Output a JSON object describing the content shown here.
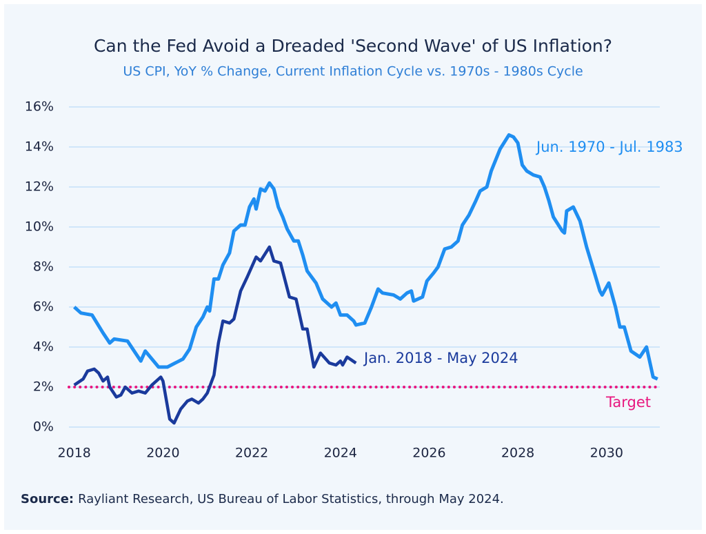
{
  "chart_data": {
    "type": "line",
    "title": "Can the Fed Avoid a Dreaded 'Second Wave' of US Inflation?",
    "subtitle": "US CPI, YoY % Change, Current Inflation Cycle vs. 1970s - 1980s Cycle",
    "source_label": "Source:",
    "source_text": "Rayliant Research, US Bureau of Labor Statistics, through May 2024.",
    "xlim": [
      2017.88,
      2031.2
    ],
    "xticks": [
      2018,
      2020,
      2022,
      2024,
      2026,
      2028,
      2030
    ],
    "ylim": [
      0,
      16
    ],
    "yticks": [
      {
        "value": 0,
        "label": "0%"
      },
      {
        "value": 2,
        "label": "2%"
      },
      {
        "value": 4,
        "label": "4%"
      },
      {
        "value": 6,
        "label": "6%"
      },
      {
        "value": 8,
        "label": "8%"
      },
      {
        "value": 10,
        "label": "10%"
      },
      {
        "value": 12,
        "label": "12%"
      },
      {
        "value": 14,
        "label": "14%"
      },
      {
        "value": 16,
        "label": "16%"
      }
    ],
    "grid": true,
    "reference_line": {
      "value": 2,
      "label": "Target",
      "color": "#e8177f"
    },
    "series": [
      {
        "name": "Jun. 1970 - Jul. 1983",
        "color": "#1f8ef1",
        "x": [
          2018.0,
          2018.15,
          2018.4,
          2018.65,
          2018.8,
          2018.9,
          2019.2,
          2019.5,
          2019.6,
          2019.9,
          2020.1,
          2020.45,
          2020.6,
          2020.75,
          2020.9,
          2021.0,
          2021.05,
          2021.15,
          2021.25,
          2021.35,
          2021.5,
          2021.6,
          2021.75,
          2021.85,
          2021.95,
          2022.05,
          2022.1,
          2022.2,
          2022.3,
          2022.4,
          2022.5,
          2022.6,
          2022.7,
          2022.8,
          2022.95,
          2023.05,
          2023.15,
          2023.25,
          2023.45,
          2023.6,
          2023.8,
          2023.9,
          2024.0,
          2024.15,
          2024.3,
          2024.35,
          2024.55,
          2024.7,
          2024.85,
          2024.95,
          2025.2,
          2025.35,
          2025.5,
          2025.6,
          2025.65,
          2025.85,
          2025.95,
          2026.1,
          2026.2,
          2026.35,
          2026.5,
          2026.65,
          2026.75,
          2026.9,
          2027.05,
          2027.15,
          2027.3,
          2027.4,
          2027.6,
          2027.8,
          2027.9,
          2028.0,
          2028.1,
          2028.2,
          2028.35,
          2028.5,
          2028.6,
          2028.7,
          2028.8,
          2029.0,
          2029.05,
          2029.1,
          2029.25,
          2029.4,
          2029.55,
          2029.7,
          2029.85,
          2029.9,
          2030.05,
          2030.2,
          2030.3,
          2030.4,
          2030.55,
          2030.75,
          2030.9,
          2030.95,
          2031.05,
          2031.15
        ],
        "values": [
          6.0,
          5.7,
          5.6,
          4.7,
          4.2,
          4.4,
          4.3,
          3.3,
          3.8,
          3.0,
          3.0,
          3.4,
          3.9,
          5.0,
          5.5,
          6.0,
          5.8,
          7.4,
          7.4,
          8.1,
          8.7,
          9.8,
          10.1,
          10.1,
          11.0,
          11.4,
          10.9,
          11.9,
          11.8,
          12.2,
          11.9,
          11.0,
          10.5,
          9.9,
          9.3,
          9.3,
          8.6,
          7.8,
          7.2,
          6.4,
          6.0,
          6.2,
          5.6,
          5.6,
          5.3,
          5.1,
          5.2,
          6.0,
          6.9,
          6.7,
          6.6,
          6.4,
          6.7,
          6.8,
          6.3,
          6.5,
          7.3,
          7.7,
          8.0,
          8.9,
          9.0,
          9.3,
          10.1,
          10.6,
          11.3,
          11.8,
          12.0,
          12.8,
          13.9,
          14.6,
          14.5,
          14.2,
          13.1,
          12.8,
          12.6,
          12.5,
          12.0,
          11.3,
          10.5,
          9.8,
          9.7,
          10.8,
          11.0,
          10.3,
          9.0,
          7.9,
          6.8,
          6.6,
          7.2,
          6.0,
          5.0,
          5.0,
          3.8,
          3.5,
          4.0,
          3.5,
          2.5,
          2.4
        ]
      },
      {
        "name": "Jan. 2018 - May 2024",
        "color": "#1a3a9c",
        "x": [
          2018.0,
          2018.2,
          2018.3,
          2018.45,
          2018.55,
          2018.65,
          2018.75,
          2018.8,
          2018.95,
          2019.05,
          2019.15,
          2019.3,
          2019.45,
          2019.6,
          2019.75,
          2019.95,
          2020.0,
          2020.15,
          2020.25,
          2020.4,
          2020.55,
          2020.65,
          2020.8,
          2020.9,
          2021.0,
          2021.15,
          2021.25,
          2021.35,
          2021.5,
          2021.6,
          2021.75,
          2021.9,
          2022.1,
          2022.2,
          2022.4,
          2022.5,
          2022.65,
          2022.85,
          2023.0,
          2023.15,
          2023.25,
          2023.4,
          2023.55,
          2023.75,
          2023.9,
          2024.0,
          2024.05,
          2024.15,
          2024.35
        ],
        "values": [
          2.1,
          2.4,
          2.8,
          2.9,
          2.7,
          2.3,
          2.5,
          2.0,
          1.5,
          1.6,
          2.0,
          1.7,
          1.8,
          1.7,
          2.1,
          2.5,
          2.3,
          0.4,
          0.2,
          0.9,
          1.3,
          1.4,
          1.2,
          1.4,
          1.7,
          2.6,
          4.2,
          5.3,
          5.2,
          5.4,
          6.8,
          7.5,
          8.5,
          8.3,
          9.0,
          8.3,
          8.2,
          6.5,
          6.4,
          4.9,
          4.9,
          3.0,
          3.7,
          3.2,
          3.1,
          3.3,
          3.1,
          3.5,
          3.2
        ]
      }
    ]
  }
}
